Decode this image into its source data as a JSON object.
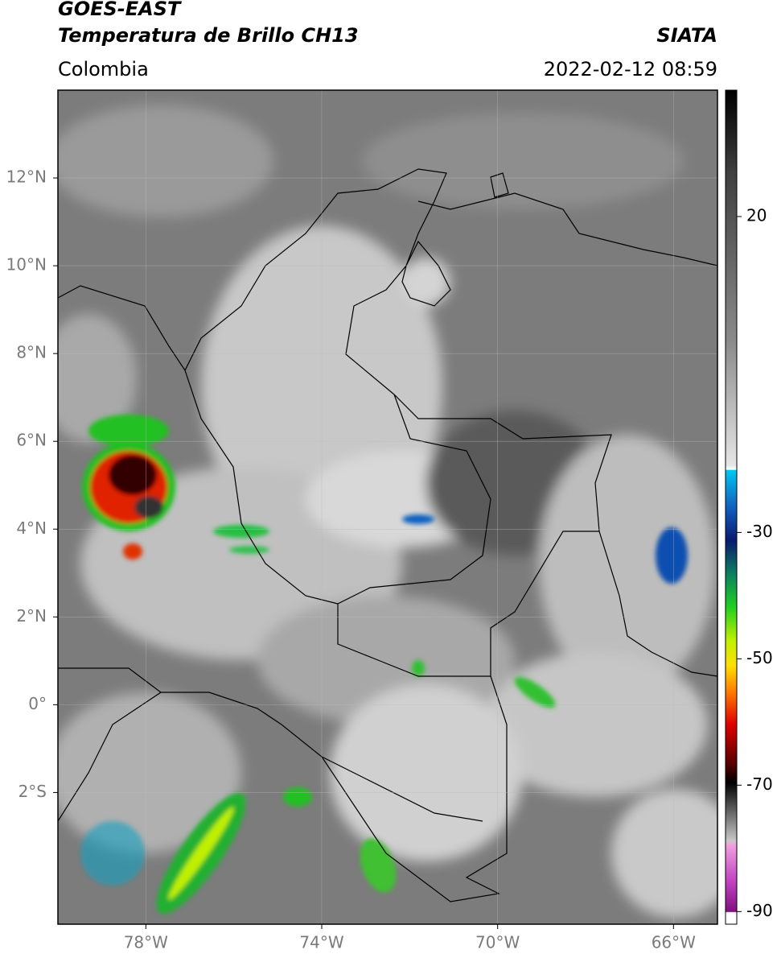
{
  "header": {
    "title_line1": "GOES-EAST",
    "title_line2": "Temperatura de Brillo CH13",
    "region": "Colombia",
    "source": "SIATA",
    "datetime": "2022-02-12 08:59"
  },
  "map": {
    "lon_range": [
      -80,
      -65
    ],
    "lat_range": [
      -5,
      14
    ],
    "lat_ticks": [
      {
        "value": 12,
        "label": "12°N"
      },
      {
        "value": 10,
        "label": "10°N"
      },
      {
        "value": 8,
        "label": "8°N"
      },
      {
        "value": 6,
        "label": "6°N"
      },
      {
        "value": 4,
        "label": "4°N"
      },
      {
        "value": 2,
        "label": "2°N"
      },
      {
        "value": 0,
        "label": "0°"
      },
      {
        "value": -2,
        "label": "2°S"
      }
    ],
    "lon_ticks": [
      {
        "value": -78,
        "label": "78°W"
      },
      {
        "value": -74,
        "label": "74°W"
      },
      {
        "value": -70,
        "label": "70°W"
      },
      {
        "value": -66,
        "label": "66°W"
      }
    ]
  },
  "colorbar": {
    "range": [
      -92,
      40
    ],
    "ticks": [
      20,
      -30,
      -50,
      -70,
      -90
    ]
  }
}
